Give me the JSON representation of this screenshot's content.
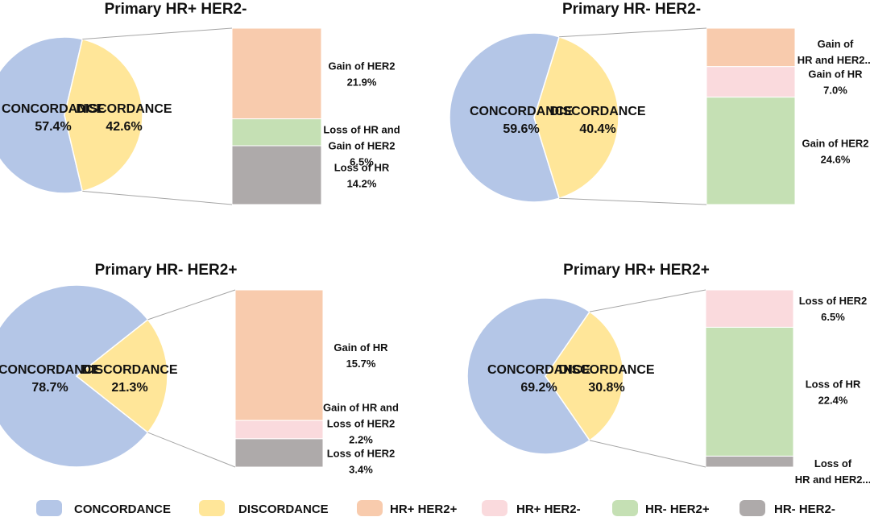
{
  "colors": {
    "concordance": "#b4c6e7",
    "discordance": "#ffe699",
    "hr_pos_her2_pos": "#f8cbad",
    "hr_pos_her2_neg": "#fadadd",
    "hr_neg_her2_pos": "#c5e0b4",
    "hr_neg_her2_neg": "#aeaaaa"
  },
  "legend": [
    {
      "label": "CONCORDANCE",
      "color_key": "concordance"
    },
    {
      "label": "DISCORDANCE",
      "color_key": "discordance"
    },
    {
      "label": "HR+ HER2+",
      "color_key": "hr_pos_her2_pos"
    },
    {
      "label": "HR+ HER2-",
      "color_key": "hr_pos_her2_neg"
    },
    {
      "label": "HR- HER2+",
      "color_key": "hr_neg_her2_pos"
    },
    {
      "label": "HR- HER2-",
      "color_key": "hr_neg_her2_neg"
    }
  ],
  "chart_data": [
    {
      "type": "pie",
      "title": "Primary  HR+ HER2-",
      "slices": [
        {
          "name": "CONCORDANCE",
          "value": 57.4,
          "label": "57.4%",
          "color_key": "concordance"
        },
        {
          "name": "DISCORDANCE",
          "value": 42.6,
          "label": "42.6%",
          "color_key": "discordance"
        }
      ],
      "breakdown": [
        {
          "name": "Gain of HER2",
          "value": 21.9,
          "label": "21.9%",
          "color_key": "hr_pos_her2_pos"
        },
        {
          "name": "Loss of HR and Gain of HER2",
          "value": 6.5,
          "label": "6.5%",
          "color_key": "hr_neg_her2_pos"
        },
        {
          "name": "Loss of HR",
          "value": 14.2,
          "label": "14.2%",
          "color_key": "hr_neg_her2_neg"
        }
      ]
    },
    {
      "type": "pie",
      "title": "Primary  HR- HER2-",
      "slices": [
        {
          "name": "CONCORDANCE",
          "value": 59.6,
          "label": "59.6%",
          "color_key": "concordance"
        },
        {
          "name": "DISCORDANCE",
          "value": 40.4,
          "label": "40.4%",
          "color_key": "discordance"
        }
      ],
      "breakdown": [
        {
          "name": "Gain of HR and HER2...",
          "value": 8.8,
          "label": "",
          "color_key": "hr_pos_her2_pos"
        },
        {
          "name": "Gain of HR",
          "value": 7.0,
          "label": "7.0%",
          "color_key": "hr_pos_her2_neg"
        },
        {
          "name": "Gain of HER2",
          "value": 24.6,
          "label": "24.6%",
          "color_key": "hr_neg_her2_pos"
        }
      ]
    },
    {
      "type": "pie",
      "title": "Primary  HR- HER2+",
      "slices": [
        {
          "name": "CONCORDANCE",
          "value": 78.7,
          "label": "78.7%",
          "color_key": "concordance"
        },
        {
          "name": "DISCORDANCE",
          "value": 21.3,
          "label": "21.3%",
          "color_key": "discordance"
        }
      ],
      "breakdown": [
        {
          "name": "Gain of HR",
          "value": 15.7,
          "label": "15.7%",
          "color_key": "hr_pos_her2_pos"
        },
        {
          "name": "Gain of HR and Loss of HER2",
          "value": 2.2,
          "label": "2.2%",
          "color_key": "hr_pos_her2_neg"
        },
        {
          "name": "Loss of HER2",
          "value": 3.4,
          "label": "3.4%",
          "color_key": "hr_neg_her2_neg"
        }
      ]
    },
    {
      "type": "pie",
      "title": "Primary  HR+ HER2+",
      "slices": [
        {
          "name": "CONCORDANCE",
          "value": 69.2,
          "label": "69.2%",
          "color_key": "concordance"
        },
        {
          "name": "DISCORDANCE",
          "value": 30.8,
          "label": "30.8%",
          "color_key": "discordance"
        }
      ],
      "breakdown": [
        {
          "name": "Loss of HER2",
          "value": 6.5,
          "label": "6.5%",
          "color_key": "hr_pos_her2_neg"
        },
        {
          "name": "Loss of HR",
          "value": 22.4,
          "label": "22.4%",
          "color_key": "hr_neg_her2_pos"
        },
        {
          "name": "Loss of HR and HER2...",
          "value": 1.9,
          "label": "",
          "color_key": "hr_neg_her2_neg"
        }
      ]
    }
  ]
}
